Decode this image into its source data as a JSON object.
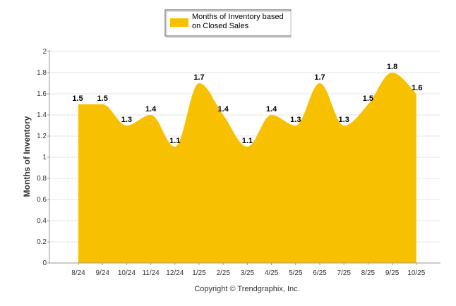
{
  "chart_data": {
    "type": "area",
    "categories": [
      "8/24",
      "9/24",
      "10/24",
      "11/24",
      "12/24",
      "1/25",
      "2/25",
      "3/25",
      "4/25",
      "5/25",
      "6/25",
      "7/25",
      "8/25",
      "9/25",
      "10/25"
    ],
    "series": [
      {
        "name": "Months of Inventory based on Closed Sales",
        "name_lines": [
          "Months of Inventory based",
          "on Closed Sales"
        ],
        "values": [
          1.5,
          1.5,
          1.3,
          1.4,
          1.1,
          1.7,
          1.4,
          1.1,
          1.4,
          1.3,
          1.7,
          1.3,
          1.5,
          1.8,
          1.6
        ],
        "labels": [
          "1.5",
          "1.5",
          "1.3",
          "1.4",
          "1.1",
          "1.7",
          "1.4",
          "1.1",
          "1.4",
          "1.3",
          "1.7",
          "1.3",
          "1.5",
          "1.8",
          "1.6"
        ]
      }
    ],
    "ylabel": "Months of Inventory",
    "ylim": [
      0,
      2
    ],
    "yticks": [
      "0",
      "0.2",
      "0.4",
      "0.6",
      "0.8",
      "1",
      "1.2",
      "1.4",
      "1.6",
      "1.8",
      "2"
    ],
    "grid": true,
    "legend_position": "top-center"
  },
  "colors": {
    "fill": "#F7C102",
    "grid": "#E6E6E6",
    "axis": "#999999"
  },
  "footer": "Copyright © Trendgraphix, Inc."
}
